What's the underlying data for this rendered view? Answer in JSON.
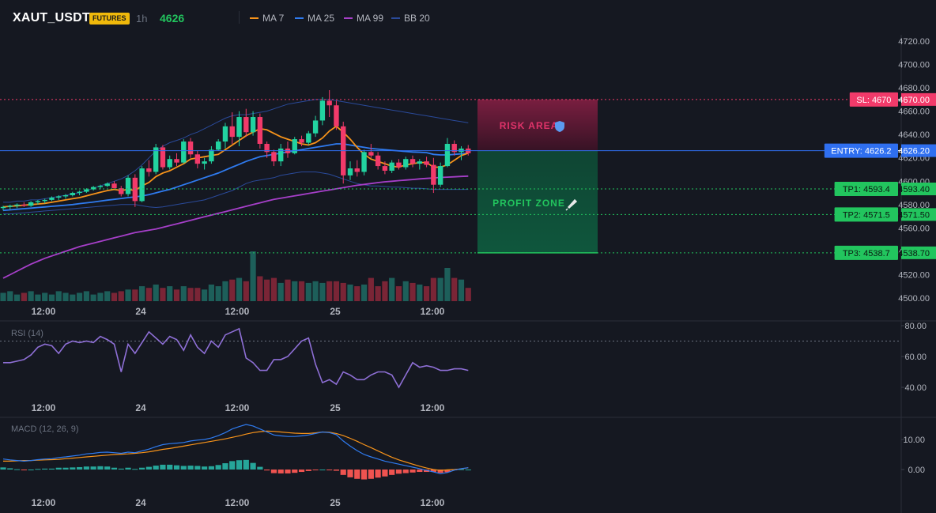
{
  "header": {
    "symbol": "XAUT_USDT",
    "badge": "FUTURES",
    "timeframe": "1h",
    "price": "4626",
    "legend": [
      {
        "label": "MA 7",
        "color": "#f7931a"
      },
      {
        "label": "MA 25",
        "color": "#2f7bf0"
      },
      {
        "label": "MA 99",
        "color": "#a63fc9"
      },
      {
        "label": "BB 20",
        "color": "#2a4a9a"
      }
    ]
  },
  "colors": {
    "up": "#22d3a0",
    "down": "#f23a6a",
    "vol_up": "#1d5f5a",
    "vol_down": "#7a2536",
    "rsi": "#8e6fd6",
    "macd": "#2f7bf0",
    "signal": "#f7931a",
    "hist_up": "#26a69a",
    "hist_down": "#ef5350"
  },
  "chart_data": [
    {
      "type": "candlestick",
      "title": "",
      "x_ticks": [
        "12:00",
        "24",
        "12:00",
        "25",
        "12:00"
      ],
      "y_ticks": [
        "4720.00",
        "4700.00",
        "4680.00",
        "4660.00",
        "4640.00",
        "4620.00",
        "4600.00",
        "4580.00",
        "4560.00",
        "4540.00",
        "4520.00",
        "4500.00"
      ],
      "ylim": [
        4500,
        4720
      ],
      "ohlc": [
        [
          4577,
          4579,
          4575,
          4578
        ],
        [
          4578,
          4580,
          4576,
          4579
        ],
        [
          4579,
          4581,
          4577,
          4580
        ],
        [
          4580,
          4582,
          4578,
          4579
        ],
        [
          4579,
          4583,
          4578,
          4582
        ],
        [
          4582,
          4584,
          4580,
          4583
        ],
        [
          4583,
          4585,
          4581,
          4584
        ],
        [
          4584,
          4587,
          4583,
          4586
        ],
        [
          4586,
          4588,
          4584,
          4587
        ],
        [
          4587,
          4589,
          4585,
          4588
        ],
        [
          4588,
          4591,
          4587,
          4590
        ],
        [
          4590,
          4592,
          4588,
          4591
        ],
        [
          4591,
          4594,
          4590,
          4593
        ],
        [
          4593,
          4596,
          4592,
          4595
        ],
        [
          4595,
          4597,
          4593,
          4596
        ],
        [
          4596,
          4599,
          4595,
          4598
        ],
        [
          4598,
          4600,
          4596,
          4594
        ],
        [
          4594,
          4596,
          4587,
          4589
        ],
        [
          4589,
          4605,
          4587,
          4603
        ],
        [
          4603,
          4606,
          4578,
          4583
        ],
        [
          4583,
          4613,
          4582,
          4611
        ],
        [
          4611,
          4618,
          4604,
          4608
        ],
        [
          4608,
          4632,
          4606,
          4629
        ],
        [
          4629,
          4631,
          4610,
          4612
        ],
        [
          4612,
          4622,
          4610,
          4619
        ],
        [
          4619,
          4624,
          4613,
          4616
        ],
        [
          4616,
          4636,
          4615,
          4634
        ],
        [
          4634,
          4637,
          4620,
          4623
        ],
        [
          4623,
          4626,
          4611,
          4615
        ],
        [
          4615,
          4620,
          4610,
          4617
        ],
        [
          4617,
          4630,
          4615,
          4627
        ],
        [
          4627,
          4636,
          4626,
          4634
        ],
        [
          4634,
          4650,
          4628,
          4647
        ],
        [
          4647,
          4659,
          4632,
          4638
        ],
        [
          4638,
          4660,
          4630,
          4655
        ],
        [
          4655,
          4662,
          4638,
          4642
        ],
        [
          4642,
          4660,
          4639,
          4655
        ],
        [
          4655,
          4658,
          4628,
          4632
        ],
        [
          4632,
          4634,
          4620,
          4625
        ],
        [
          4625,
          4627,
          4613,
          4617
        ],
        [
          4617,
          4632,
          4613,
          4628
        ],
        [
          4628,
          4634,
          4620,
          4624
        ],
        [
          4624,
          4638,
          4623,
          4636
        ],
        [
          4636,
          4639,
          4630,
          4633
        ],
        [
          4633,
          4643,
          4631,
          4641
        ],
        [
          4641,
          4656,
          4638,
          4652
        ],
        [
          4652,
          4672,
          4648,
          4669
        ],
        [
          4669,
          4678,
          4655,
          4665
        ],
        [
          4665,
          4669,
          4644,
          4647
        ],
        [
          4647,
          4651,
          4598,
          4605
        ],
        [
          4605,
          4617,
          4601,
          4611
        ],
        [
          4611,
          4618,
          4604,
          4608
        ],
        [
          4608,
          4627,
          4605,
          4625
        ],
        [
          4625,
          4632,
          4620,
          4622
        ],
        [
          4622,
          4625,
          4610,
          4613
        ],
        [
          4613,
          4617,
          4606,
          4609
        ],
        [
          4609,
          4618,
          4607,
          4616
        ],
        [
          4616,
          4619,
          4610,
          4612
        ],
        [
          4612,
          4621,
          4610,
          4619
        ],
        [
          4619,
          4622,
          4612,
          4615
        ],
        [
          4615,
          4619,
          4610,
          4617
        ],
        [
          4617,
          4621,
          4612,
          4614
        ],
        [
          4614,
          4620,
          4590,
          4597
        ],
        [
          4597,
          4616,
          4595,
          4613
        ],
        [
          4613,
          4637,
          4612,
          4632
        ],
        [
          4632,
          4635,
          4622,
          4625
        ],
        [
          4625,
          4630,
          4618,
          4628
        ],
        [
          4628,
          4631,
          4622,
          4624
        ]
      ],
      "volume": [
        5,
        6,
        4,
        5,
        6,
        4,
        5,
        4,
        6,
        5,
        4,
        5,
        6,
        4,
        5,
        6,
        5,
        6,
        7,
        7,
        9,
        8,
        10,
        8,
        9,
        7,
        9,
        8,
        8,
        7,
        10,
        9,
        12,
        13,
        14,
        12,
        30,
        15,
        13,
        14,
        11,
        13,
        12,
        12,
        11,
        12,
        11,
        12,
        12,
        11,
        10,
        9,
        10,
        14,
        9,
        12,
        14,
        9,
        12,
        11,
        10,
        9,
        14,
        14,
        20,
        14,
        13,
        8
      ],
      "ma7": [
        4578,
        4578.5,
        4579,
        4579.5,
        4580,
        4580.5,
        4581,
        4582,
        4583,
        4584,
        4585,
        4586,
        4587.5,
        4589,
        4590.5,
        4592,
        4593,
        4592,
        4593,
        4592,
        4596,
        4599,
        4604,
        4607,
        4609,
        4612,
        4615,
        4619,
        4620,
        4621,
        4622,
        4623,
        4627,
        4631,
        4635,
        4639,
        4642,
        4645,
        4644,
        4641,
        4638,
        4636,
        4634,
        4632,
        4631,
        4633,
        4637,
        4643,
        4647,
        4642,
        4636,
        4629,
        4623,
        4619,
        4617,
        4615,
        4613,
        4612,
        4614,
        4615,
        4616,
        4616,
        4612,
        4612,
        4614,
        4618,
        4622,
        4624
      ],
      "ma25": [
        4575,
        4575.5,
        4576,
        4576.5,
        4577,
        4577.5,
        4578,
        4578.5,
        4579,
        4579.5,
        4580,
        4580.8,
        4581.5,
        4582.2,
        4583,
        4583.8,
        4584.5,
        4585.2,
        4586,
        4586.6,
        4587.4,
        4588.5,
        4590,
        4591.5,
        4593,
        4595,
        4597,
        4599,
        4601,
        4603,
        4605,
        4607,
        4609.5,
        4612,
        4614.5,
        4617,
        4619,
        4621,
        4622,
        4623,
        4624,
        4625,
        4626,
        4627,
        4628,
        4629,
        4630,
        4631,
        4632,
        4632,
        4631,
        4630,
        4629,
        4628,
        4627.5,
        4627,
        4626.5,
        4626,
        4625.5,
        4625,
        4624.8,
        4624.5,
        4623,
        4622.5,
        4622.5,
        4623,
        4623.5,
        4624
      ],
      "ma99": [
        4517,
        4520,
        4523,
        4526,
        4529,
        4531.5,
        4534,
        4536,
        4538,
        4540,
        4542,
        4544,
        4545.5,
        4547,
        4548.5,
        4550,
        4551.5,
        4553,
        4554.5,
        4556,
        4557,
        4558,
        4559,
        4560.5,
        4562,
        4563.5,
        4565,
        4566.5,
        4568,
        4569.5,
        4571,
        4572.5,
        4574,
        4575.5,
        4577,
        4578.5,
        4580,
        4581.5,
        4583,
        4584.5,
        4585.5,
        4586.5,
        4587.5,
        4588.5,
        4589.5,
        4590.5,
        4591.5,
        4592.5,
        4593.5,
        4594.5,
        4595.5,
        4596.5,
        4597.3,
        4598,
        4598.8,
        4599.5,
        4600,
        4600.5,
        4601,
        4601.5,
        4602,
        4602.4,
        4602.8,
        4603.2,
        4603.5,
        4603.8,
        4604.1,
        4604.4
      ],
      "bb_upper": [
        4582,
        4582,
        4583,
        4583,
        4584,
        4584,
        4585,
        4586,
        4587,
        4588,
        4589,
        4590,
        4592,
        4594,
        4596,
        4598,
        4600,
        4602,
        4605,
        4609,
        4614,
        4620,
        4626,
        4630,
        4633,
        4635,
        4637,
        4640,
        4642,
        4645,
        4648,
        4651,
        4654,
        4656,
        4657,
        4657,
        4658,
        4659,
        4660,
        4662,
        4664,
        4666,
        4667,
        4668,
        4669,
        4670,
        4670,
        4670,
        4669,
        4668,
        4667,
        4666,
        4665,
        4664,
        4663,
        4662,
        4661,
        4660,
        4659,
        4658,
        4657,
        4656,
        4655,
        4654,
        4653,
        4652,
        4651,
        4650
      ],
      "bb_lower": [
        4572,
        4572,
        4572.5,
        4573,
        4573.5,
        4574,
        4574.5,
        4575,
        4575.5,
        4576,
        4576.5,
        4577,
        4577.5,
        4578,
        4578.5,
        4579,
        4579.5,
        4580,
        4580,
        4580,
        4579,
        4578,
        4577.5,
        4578,
        4579,
        4580,
        4581,
        4582,
        4583,
        4584,
        4586,
        4588,
        4590,
        4592,
        4595,
        4598,
        4600,
        4601,
        4602,
        4603,
        4605,
        4606,
        4607,
        4608,
        4608,
        4608,
        4607,
        4606,
        4604,
        4602,
        4600,
        4598,
        4597,
        4596,
        4596,
        4595.5,
        4595,
        4595,
        4594.5,
        4594,
        4594,
        4593.5,
        4593,
        4593,
        4593,
        4593,
        4593,
        4593
      ]
    },
    {
      "type": "line",
      "title": "RSI (14)",
      "y_ticks": [
        "80.00",
        "60.00",
        "40.00"
      ],
      "ylim": [
        30,
        85
      ],
      "overbought": 70,
      "values": [
        56,
        56,
        57,
        58,
        61,
        66,
        68,
        67,
        62,
        68,
        70,
        69,
        70,
        69,
        73,
        71,
        68,
        50,
        68,
        62,
        69,
        76,
        72,
        68,
        73,
        71,
        64,
        74,
        66,
        62,
        70,
        66,
        74,
        76,
        78,
        59,
        56,
        51,
        51,
        58,
        58,
        60,
        65,
        70,
        72,
        55,
        43,
        45,
        42,
        50,
        48,
        45,
        45,
        48,
        50,
        50,
        48,
        40,
        48,
        56,
        53,
        54,
        53,
        51,
        51,
        52,
        52,
        51
      ],
      "x_ticks": [
        "12:00",
        "24",
        "12:00",
        "25",
        "12:00"
      ]
    },
    {
      "type": "line",
      "title": "MACD (12, 26, 9)",
      "y_ticks": [
        "10.00",
        "0.00"
      ],
      "ylim": [
        -8,
        16
      ],
      "macd": [
        3.5,
        3.2,
        3,
        2.8,
        3,
        3.3,
        3.5,
        3.6,
        4,
        4.2,
        4.5,
        4.8,
        5.2,
        5.4,
        5.7,
        5.8,
        5.6,
        5.4,
        5.8,
        5.6,
        6.2,
        6.8,
        7.6,
        8.3,
        8.6,
        8.8,
        9,
        9.5,
        9.8,
        10,
        10.5,
        11.3,
        12.3,
        13.5,
        14.3,
        15,
        14.5,
        13.5,
        12.5,
        11.5,
        11.2,
        11,
        11,
        11.2,
        11.5,
        12,
        12.5,
        12.3,
        11.6,
        9.5,
        7.8,
        6.3,
        5,
        4.2,
        3.5,
        2.8,
        2.3,
        1.8,
        1.3,
        0.8,
        0.3,
        -0.3,
        -0.8,
        -1.4,
        -1,
        -0.2,
        0.3,
        0.6
      ],
      "signal": [
        2.8,
        2.8,
        2.9,
        3,
        3,
        3.1,
        3.2,
        3.3,
        3.4,
        3.6,
        3.8,
        4,
        4.2,
        4.4,
        4.6,
        4.8,
        5,
        5.1,
        5.2,
        5.4,
        5.6,
        5.9,
        6.3,
        6.7,
        7,
        7.4,
        7.8,
        8.2,
        8.6,
        9,
        9.4,
        9.8,
        10.2,
        10.7,
        11.2,
        11.8,
        12.3,
        12.6,
        12.8,
        12.7,
        12.5,
        12.3,
        12.1,
        12,
        12,
        12.2,
        12.5,
        12.4,
        12,
        11.3,
        10.4,
        9.4,
        8.3,
        7.3,
        6.2,
        5.1,
        4.1,
        3.2,
        2.5,
        1.8,
        1.1,
        0.5,
        0,
        -0.3,
        -0.1,
        0,
        0.2,
        0.6
      ],
      "x_ticks": [
        "12:00",
        "24",
        "12:00",
        "25",
        "12:00"
      ]
    }
  ],
  "levels": {
    "sl": {
      "chip": "SL: 4670",
      "axis": "4670.00",
      "value": 4670
    },
    "entry": {
      "chip": "ENTRY: 4626.2",
      "axis": "4626.20",
      "value": 4626.2
    },
    "tps": [
      {
        "chip": "TP1: 4593.4",
        "axis": "4593.40",
        "value": 4593.4
      },
      {
        "chip": "TP2: 4571.5",
        "axis": "4571.50",
        "value": 4571.5
      },
      {
        "chip": "TP3: 4538.7",
        "axis": "4538.70",
        "value": 4538.7
      }
    ],
    "risk_label": "RISK AREA",
    "profit_label": "PROFIT ZONE"
  }
}
